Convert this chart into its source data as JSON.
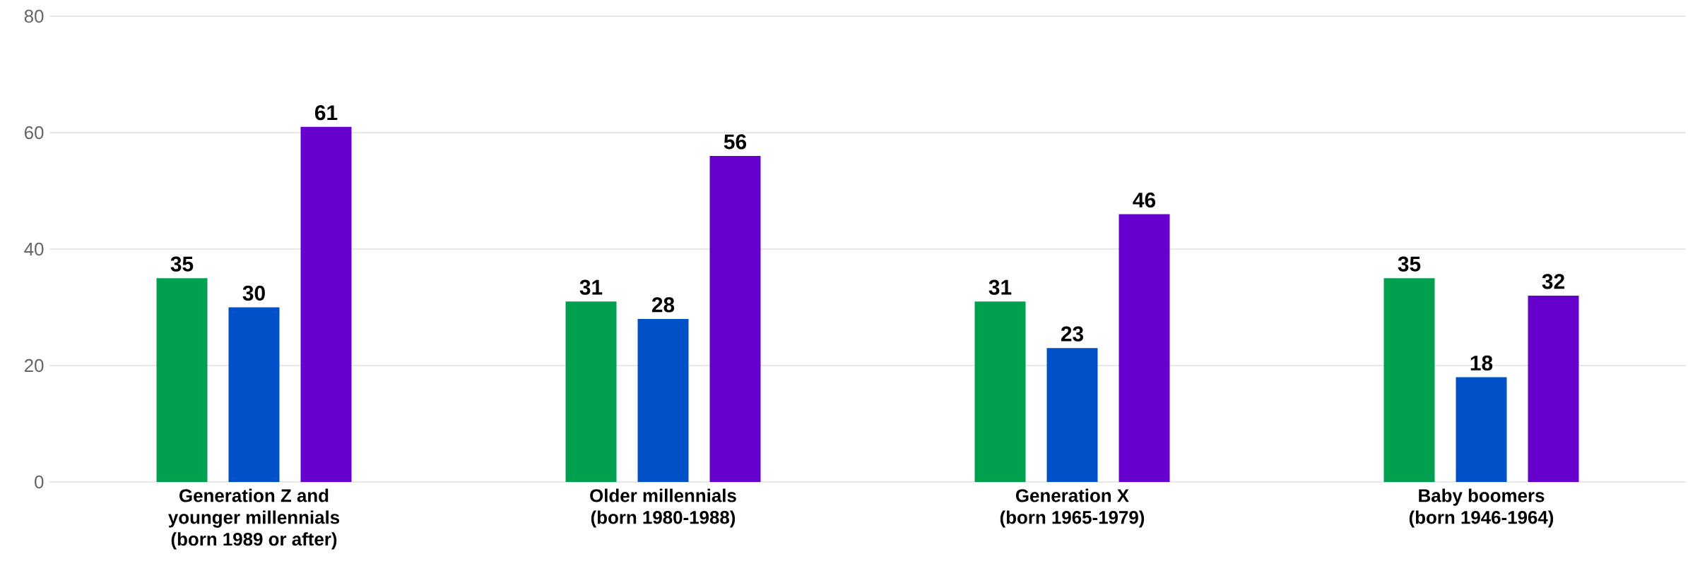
{
  "chart_data": {
    "type": "bar",
    "categories": [
      "Generation Z and\nyounger millennials\n(born 1989 or after)",
      "Older millennials\n(born 1980-1988)",
      "Generation X\n(born 1965-1979)",
      "Baby boomers\n(born 1946-1964)"
    ],
    "series": [
      {
        "color": "#00a050",
        "values": [
          35,
          31,
          31,
          35
        ]
      },
      {
        "color": "#0050c8",
        "values": [
          30,
          28,
          23,
          18
        ]
      },
      {
        "color": "#6600cc",
        "values": [
          61,
          56,
          46,
          32
        ]
      }
    ],
    "ylim": [
      0,
      80
    ],
    "yticks": [
      0,
      20,
      40,
      60,
      80
    ],
    "grid": "y",
    "data_labels": true
  }
}
